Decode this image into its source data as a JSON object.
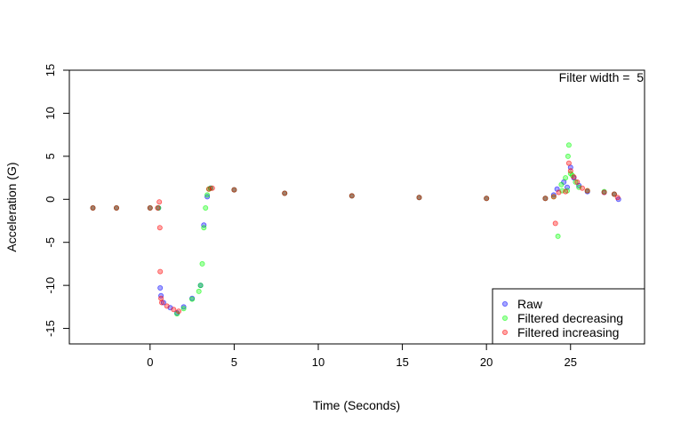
{
  "chart_data": {
    "type": "scatter",
    "title": "",
    "xlabel": "Time (Seconds)",
    "ylabel": "Acceleration (G)",
    "xlim": [
      -4.8,
      29.4
    ],
    "ylim": [
      -16.8,
      15
    ],
    "x_ticks": [
      0,
      5,
      10,
      15,
      20,
      25
    ],
    "y_ticks": [
      -15,
      -10,
      -5,
      0,
      5,
      10,
      15
    ],
    "grid": false,
    "legend_position": "bottom-right",
    "annotation": "Filter width =  5",
    "series": [
      {
        "name": "Raw",
        "color": "#0000ff",
        "points": [
          [
            -3.4,
            -1.0
          ],
          [
            -2.0,
            -1.0
          ],
          [
            0,
            -1.0
          ],
          [
            0.5,
            -1.0
          ],
          [
            0.6,
            -10.3
          ],
          [
            0.65,
            -11.2
          ],
          [
            0.8,
            -12.0
          ],
          [
            1.2,
            -12.6
          ],
          [
            1.6,
            -13.2
          ],
          [
            2.0,
            -12.5
          ],
          [
            2.5,
            -11.5
          ],
          [
            3.0,
            -10.0
          ],
          [
            3.2,
            -3.0
          ],
          [
            3.4,
            0.3
          ],
          [
            3.6,
            1.3
          ],
          [
            5,
            1.1
          ],
          [
            8,
            0.7
          ],
          [
            12,
            0.4
          ],
          [
            16,
            0.2
          ],
          [
            20,
            0.1
          ],
          [
            23.5,
            0.1
          ],
          [
            24.0,
            0.5
          ],
          [
            24.2,
            1.2
          ],
          [
            24.6,
            2.0
          ],
          [
            24.8,
            1.4
          ],
          [
            25.0,
            3.7
          ],
          [
            25.2,
            2.5
          ],
          [
            25.5,
            1.6
          ],
          [
            26,
            0.9
          ],
          [
            27,
            0.8
          ],
          [
            27.6,
            0.6
          ],
          [
            27.85,
            0.0
          ]
        ]
      },
      {
        "name": "Filtered decreasing",
        "color": "#00ff00",
        "points": [
          [
            -3.4,
            -1.0
          ],
          [
            -2.0,
            -1.0
          ],
          [
            0,
            -1.0
          ],
          [
            0.5,
            -1.0
          ],
          [
            1.6,
            -13.3
          ],
          [
            2.0,
            -12.7
          ],
          [
            2.5,
            -11.6
          ],
          [
            2.9,
            -10.7
          ],
          [
            3.0,
            -10.0
          ],
          [
            3.1,
            -7.5
          ],
          [
            3.2,
            -3.3
          ],
          [
            3.3,
            -1.0
          ],
          [
            3.4,
            0.5
          ],
          [
            3.5,
            1.2
          ],
          [
            3.6,
            1.3
          ],
          [
            5,
            1.1
          ],
          [
            8,
            0.7
          ],
          [
            12,
            0.4
          ],
          [
            16,
            0.2
          ],
          [
            20,
            0.1
          ],
          [
            23.5,
            0.1
          ],
          [
            24.0,
            0.3
          ],
          [
            24.25,
            -4.3
          ],
          [
            24.45,
            1.7
          ],
          [
            24.5,
            1.0
          ],
          [
            24.7,
            2.5
          ],
          [
            24.8,
            1.0
          ],
          [
            24.85,
            5.0
          ],
          [
            24.9,
            6.3
          ],
          [
            25.0,
            3.0
          ],
          [
            25.1,
            2.8
          ],
          [
            25.3,
            2.0
          ],
          [
            25.5,
            1.4
          ],
          [
            26,
            1.0
          ],
          [
            27,
            0.9
          ],
          [
            27.6,
            0.6
          ]
        ]
      },
      {
        "name": "Filtered increasing",
        "color": "#ff0000",
        "points": [
          [
            -3.4,
            -1.0
          ],
          [
            -2.0,
            -1.0
          ],
          [
            0,
            -1.0
          ],
          [
            0.45,
            -1.0
          ],
          [
            0.55,
            -0.3
          ],
          [
            0.58,
            -3.3
          ],
          [
            0.6,
            -8.4
          ],
          [
            0.65,
            -11.5
          ],
          [
            0.7,
            -12.0
          ],
          [
            1.0,
            -12.4
          ],
          [
            1.4,
            -12.8
          ],
          [
            1.7,
            -13.0
          ],
          [
            3.5,
            1.2
          ],
          [
            3.7,
            1.3
          ],
          [
            5,
            1.1
          ],
          [
            8,
            0.7
          ],
          [
            12,
            0.4
          ],
          [
            16,
            0.2
          ],
          [
            20,
            0.1
          ],
          [
            23.5,
            0.1
          ],
          [
            24.0,
            0.3
          ],
          [
            24.1,
            -2.8
          ],
          [
            24.3,
            0.8
          ],
          [
            24.7,
            0.9
          ],
          [
            24.9,
            4.2
          ],
          [
            25.0,
            3.3
          ],
          [
            25.2,
            2.6
          ],
          [
            25.4,
            2.0
          ],
          [
            25.7,
            1.3
          ],
          [
            26,
            1.0
          ],
          [
            27,
            0.8
          ],
          [
            27.6,
            0.6
          ],
          [
            27.8,
            0.2
          ]
        ]
      }
    ]
  }
}
